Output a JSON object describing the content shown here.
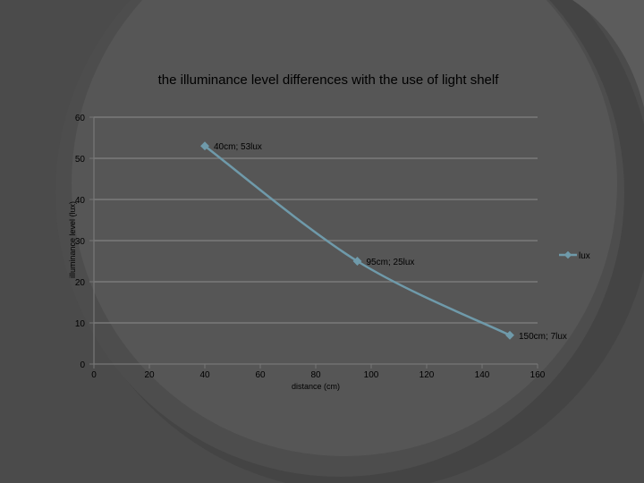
{
  "chart_data": {
    "type": "line",
    "title": "the illuminance level  differences with the use of light shelf",
    "xlabel": "distance (cm)",
    "ylabel": "illuminance level (lux)",
    "xlim": [
      0,
      160
    ],
    "ylim": [
      0,
      60
    ],
    "xticks": [
      0,
      20,
      40,
      60,
      80,
      100,
      120,
      140,
      160
    ],
    "yticks": [
      0,
      10,
      20,
      30,
      40,
      50,
      60
    ],
    "grid": "horizontal",
    "legend_position": "right",
    "series": [
      {
        "name": "lux",
        "color": "#6f9aaa",
        "x": [
          40,
          95,
          150
        ],
        "y": [
          53,
          25,
          7
        ],
        "labels": [
          "40cm; 53lux",
          "95cm; 25lux",
          "150cm; 7lux"
        ]
      }
    ]
  }
}
